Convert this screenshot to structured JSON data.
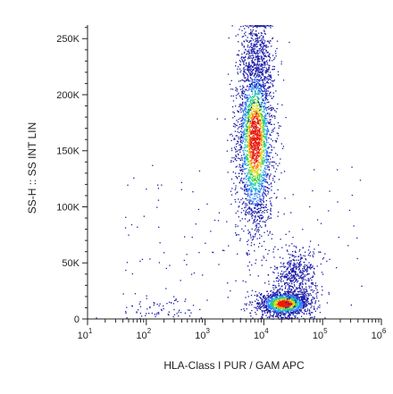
{
  "chart_data": {
    "type": "scatter",
    "title": "",
    "xlabel": "HLA-Class I PUR / GAM APC",
    "ylabel": "SS-H :: SS INT LIN",
    "x_scale": "log",
    "y_scale": "linear",
    "xlim": [
      10,
      1000000
    ],
    "ylim": [
      0,
      262144
    ],
    "grid": false,
    "legend": "none",
    "y_ticks": [
      {
        "value": 0,
        "label": "0"
      },
      {
        "value": 50000,
        "label": "50K"
      },
      {
        "value": 100000,
        "label": "100K"
      },
      {
        "value": 150000,
        "label": "150K"
      },
      {
        "value": 200000,
        "label": "200K"
      },
      {
        "value": 250000,
        "label": "250K"
      }
    ],
    "x_ticks": [
      {
        "value": 10,
        "base": "10",
        "exp": "1"
      },
      {
        "value": 100,
        "base": "10",
        "exp": "2"
      },
      {
        "value": 1000,
        "base": "10",
        "exp": "3"
      },
      {
        "value": 10000,
        "base": "10",
        "exp": "4"
      },
      {
        "value": 100000,
        "base": "10",
        "exp": "5"
      },
      {
        "value": 1000000,
        "base": "10",
        "exp": "6"
      }
    ],
    "populations": [
      {
        "x_center": 7000,
        "y_center": 160000,
        "x_spread_log10": 0.16,
        "y_spread": 40000,
        "count": 2600
      },
      {
        "x_center": 7500,
        "y_center": 230000,
        "x_spread_log10": 0.14,
        "y_spread": 20000,
        "count": 500
      },
      {
        "x_center": 22000,
        "y_center": 14000,
        "x_spread_log10": 0.22,
        "y_spread": 5500,
        "count": 1500
      },
      {
        "x_center": 35000,
        "y_center": 40000,
        "x_spread_log10": 0.2,
        "y_spread": 12000,
        "count": 500
      },
      {
        "x_center": 160,
        "y_center": 8000,
        "x_spread_log10": 0.3,
        "y_spread": 5000,
        "count": 70
      }
    ],
    "density_colors": [
      "#1a1aa8",
      "#2b7bff",
      "#22c3c8",
      "#35d24a",
      "#d8e020",
      "#ff8000",
      "#e8190f"
    ]
  }
}
